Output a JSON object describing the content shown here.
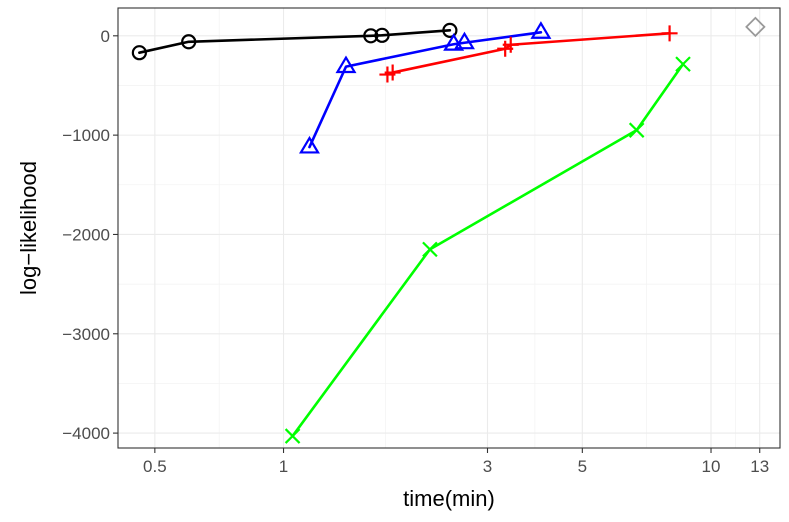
{
  "chart_data": {
    "type": "line",
    "xlabel": "time(min)",
    "ylabel": "log−likelihood",
    "x_scale": "log",
    "xlim": [
      0.41,
      14.5
    ],
    "ylim": [
      -4150,
      280
    ],
    "x_ticks": [
      0.5,
      1,
      3,
      5,
      10,
      13
    ],
    "x_tick_labels": [
      "0.5",
      "1",
      "3",
      "5",
      "10",
      "13"
    ],
    "y_ticks": [
      0,
      -1000,
      -2000,
      -3000,
      -4000
    ],
    "y_tick_labels": [
      "0",
      "−1000",
      "−2000",
      "−3000",
      "−4000"
    ],
    "grid": true,
    "legend": "none",
    "series": [
      {
        "color": "#000000",
        "marker": "circle",
        "x": [
          0.46,
          0.6,
          1.6,
          1.7,
          2.45
        ],
        "y": [
          -170,
          -60,
          0,
          5,
          55
        ]
      },
      {
        "color": "#0000ff",
        "marker": "triangle",
        "x": [
          1.15,
          1.4,
          2.5,
          2.65,
          4.0
        ],
        "y": [
          -1120,
          -310,
          -85,
          -70,
          35
        ]
      },
      {
        "color": "#ff0000",
        "marker": "plus",
        "x": [
          1.75,
          1.8,
          3.3,
          3.4,
          8.0
        ],
        "y": [
          -390,
          -370,
          -130,
          -90,
          25
        ]
      },
      {
        "color": "#00ff00",
        "marker": "cross",
        "x": [
          1.05,
          2.2,
          6.7,
          8.6
        ],
        "y": [
          -4030,
          -2150,
          -950,
          -285
        ]
      },
      {
        "color": "#999999",
        "marker": "diamond",
        "x": [
          12.7
        ],
        "y": [
          90
        ]
      }
    ]
  }
}
